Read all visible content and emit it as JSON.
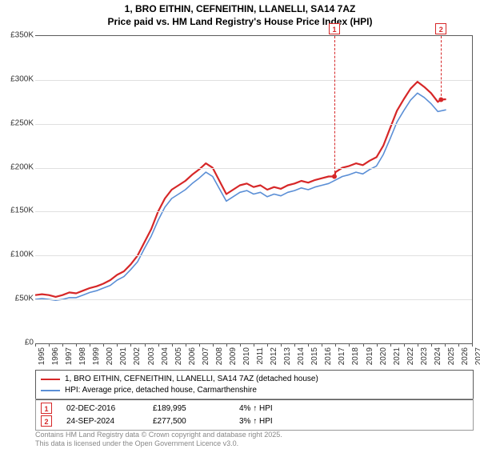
{
  "title": {
    "line1": "1, BRO EITHIN, CEFNEITHIN, LLANELLI, SA14 7AZ",
    "line2": "Price paid vs. HM Land Registry's House Price Index (HPI)"
  },
  "chart": {
    "type": "line",
    "background_color": "#ffffff",
    "grid_color": "#e0e0e0",
    "axis_color": "#5b5b5b",
    "x": {
      "min": 1995,
      "max": 2027,
      "ticks": [
        1995,
        1996,
        1997,
        1998,
        1999,
        2000,
        2001,
        2002,
        2003,
        2004,
        2005,
        2006,
        2007,
        2008,
        2009,
        2010,
        2011,
        2012,
        2013,
        2014,
        2015,
        2016,
        2017,
        2018,
        2019,
        2020,
        2021,
        2022,
        2023,
        2024,
        2025,
        2026,
        2027
      ],
      "label_fontsize": 10
    },
    "y": {
      "min": 0,
      "max": 350000,
      "ticks": [
        0,
        50000,
        100000,
        150000,
        200000,
        250000,
        300000,
        350000
      ],
      "tick_labels": [
        "£0",
        "£50K",
        "£100K",
        "£150K",
        "£200K",
        "£250K",
        "£300K",
        "£350K"
      ],
      "label_fontsize": 10
    },
    "series": [
      {
        "name": "price_paid",
        "label": "1, BRO EITHIN, CEFNEITHIN, LLANELLI, SA14 7AZ (detached house)",
        "color": "#d62728",
        "line_width": 2.2,
        "x": [
          1995,
          1995.5,
          1996,
          1996.5,
          1997,
          1997.5,
          1998,
          1998.5,
          1999,
          1999.5,
          2000,
          2000.5,
          2001,
          2001.5,
          2002,
          2002.5,
          2003,
          2003.5,
          2004,
          2004.5,
          2005,
          2005.5,
          2006,
          2006.5,
          2007,
          2007.5,
          2008,
          2008.5,
          2009,
          2009.5,
          2010,
          2010.5,
          2011,
          2011.5,
          2012,
          2012.5,
          2013,
          2013.5,
          2014,
          2014.5,
          2015,
          2015.5,
          2016,
          2016.5,
          2016.92,
          2017,
          2017.5,
          2018,
          2018.5,
          2019,
          2019.5,
          2020,
          2020.5,
          2021,
          2021.5,
          2022,
          2022.5,
          2023,
          2023.5,
          2024,
          2024.5,
          2024.73,
          2025.1
        ],
        "y": [
          55000,
          56000,
          55000,
          53000,
          55000,
          58000,
          57000,
          60000,
          63000,
          65000,
          68000,
          72000,
          78000,
          82000,
          90000,
          100000,
          115000,
          130000,
          150000,
          165000,
          175000,
          180000,
          185000,
          192000,
          198000,
          205000,
          200000,
          185000,
          170000,
          175000,
          180000,
          182000,
          178000,
          180000,
          175000,
          178000,
          176000,
          180000,
          182000,
          185000,
          183000,
          186000,
          188000,
          190000,
          189995,
          195000,
          200000,
          202000,
          205000,
          203000,
          208000,
          212000,
          225000,
          245000,
          265000,
          278000,
          290000,
          298000,
          292000,
          285000,
          275000,
          277500,
          278000
        ]
      },
      {
        "name": "hpi",
        "label": "HPI: Average price, detached house, Carmarthenshire",
        "color": "#5b8fd6",
        "line_width": 1.6,
        "x": [
          1995,
          1995.5,
          1996,
          1996.5,
          1997,
          1997.5,
          1998,
          1998.5,
          1999,
          1999.5,
          2000,
          2000.5,
          2001,
          2001.5,
          2002,
          2002.5,
          2003,
          2003.5,
          2004,
          2004.5,
          2005,
          2005.5,
          2006,
          2006.5,
          2007,
          2007.5,
          2008,
          2008.5,
          2009,
          2009.5,
          2010,
          2010.5,
          2011,
          2011.5,
          2012,
          2012.5,
          2013,
          2013.5,
          2014,
          2014.5,
          2015,
          2015.5,
          2016,
          2016.5,
          2017,
          2017.5,
          2018,
          2018.5,
          2019,
          2019.5,
          2020,
          2020.5,
          2021,
          2021.5,
          2022,
          2022.5,
          2023,
          2023.5,
          2024,
          2024.5,
          2025.1
        ],
        "y": [
          50000,
          51000,
          50000,
          49000,
          50000,
          52000,
          52000,
          55000,
          58000,
          60000,
          63000,
          66000,
          72000,
          76000,
          84000,
          93000,
          108000,
          122000,
          140000,
          155000,
          165000,
          170000,
          175000,
          182000,
          188000,
          195000,
          190000,
          176000,
          162000,
          167000,
          172000,
          174000,
          170000,
          172000,
          167000,
          170000,
          168000,
          172000,
          174000,
          177000,
          175000,
          178000,
          180000,
          182000,
          186000,
          190000,
          192000,
          195000,
          193000,
          198000,
          202000,
          215000,
          233000,
          252000,
          265000,
          277000,
          285000,
          280000,
          273000,
          264000,
          266000
        ]
      }
    ],
    "markers": [
      {
        "id": "1",
        "x": 2016.92,
        "color": "#d62728"
      },
      {
        "id": "2",
        "x": 2024.73,
        "color": "#d62728"
      }
    ]
  },
  "legend": {
    "border_color": "#5b5b5b",
    "fontsize": 10
  },
  "points_table": {
    "rows": [
      {
        "marker": "1",
        "date": "02-DEC-2016",
        "price": "£189,995",
        "delta": "4% ↑ HPI"
      },
      {
        "marker": "2",
        "date": "24-SEP-2024",
        "price": "£277,500",
        "delta": "3% ↑ HPI"
      }
    ]
  },
  "attribution": {
    "line1": "Contains HM Land Registry data © Crown copyright and database right 2025.",
    "line2": "This data is licensed under the Open Government Licence v3.0."
  }
}
